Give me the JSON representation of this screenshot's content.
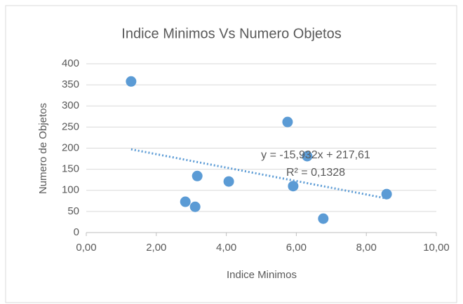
{
  "chart_data": {
    "type": "scatter",
    "title": "Indice Minimos Vs Numero Objetos",
    "x_label": "Indice Minimos",
    "y_label": "Numero de Objetos",
    "series": [
      {
        "name": "Numero de Objetos",
        "color": "#5b9bd5",
        "x": [
          1.28,
          2.83,
          3.11,
          3.17,
          4.07,
          5.75,
          6.31,
          5.91,
          6.77,
          8.58
        ],
        "values": [
          358,
          73,
          61,
          134,
          121,
          262,
          181,
          110,
          33,
          91
        ]
      }
    ],
    "trendline": {
      "equation": "y = -15,932x + 217,61",
      "r2": "R² = 0,1328",
      "slope": -15.932,
      "intercept": 217.61,
      "color": "#5b9bd5"
    },
    "xlim": [
      0,
      10
    ],
    "xticks": [
      {
        "value": 0,
        "label": "0,00"
      },
      {
        "value": 2,
        "label": "2,00"
      },
      {
        "value": 4,
        "label": "4,00"
      },
      {
        "value": 6,
        "label": "6,00"
      },
      {
        "value": 8,
        "label": "8,00"
      },
      {
        "value": 10,
        "label": "10,00"
      }
    ],
    "ylim": [
      0,
      400
    ],
    "yticks": [
      0,
      50,
      100,
      150,
      200,
      250,
      300,
      350,
      400
    ],
    "grid": true
  }
}
